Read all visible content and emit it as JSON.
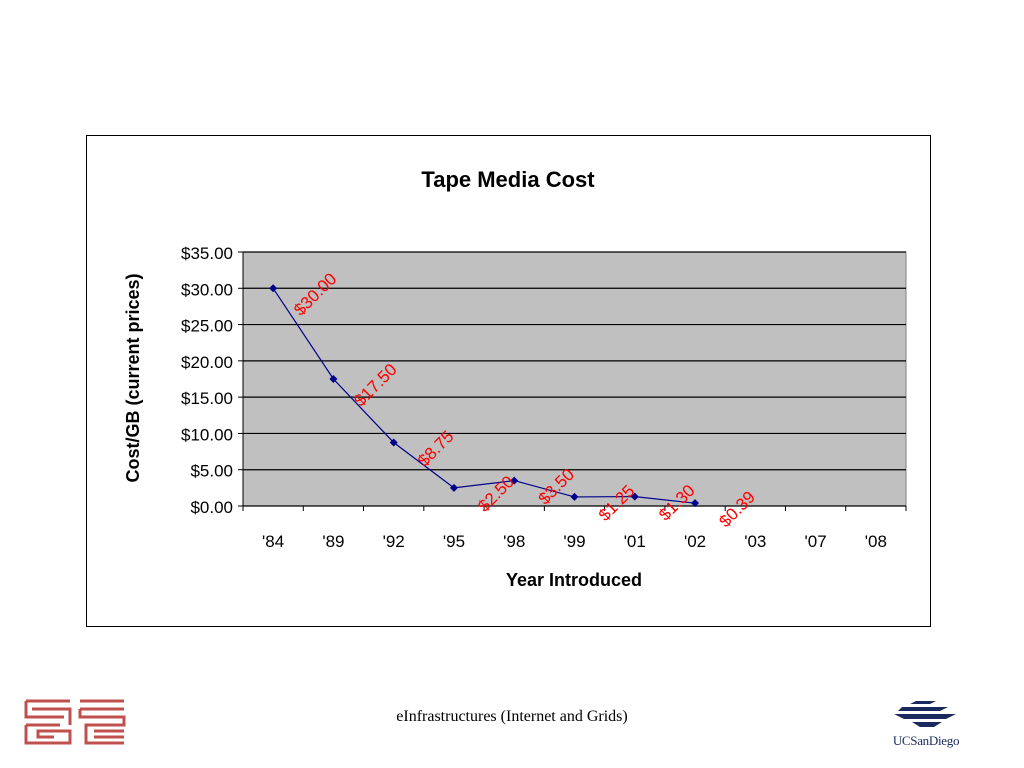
{
  "chart_data": {
    "type": "line",
    "title": "Tape Media Cost",
    "xlabel": "Year Introduced",
    "ylabel": "Cost/GB (current prices)",
    "categories": [
      "'84",
      "'89",
      "'92",
      "'95",
      "'98",
      "'99",
      "'01",
      "'02",
      "'03",
      "'07",
      "'08"
    ],
    "series": [
      {
        "values": [
          30.0,
          17.5,
          8.75,
          2.5,
          3.5,
          1.25,
          1.3,
          0.39,
          null,
          null,
          null
        ]
      }
    ],
    "data_labels": [
      "$30.00",
      "$17.50",
      "$8.75",
      "$2.50",
      "$3.50",
      "$1.25",
      "$1.30",
      "$0.39"
    ],
    "ylim": [
      0,
      35
    ],
    "ytick_values": [
      0,
      5,
      10,
      15,
      20,
      25,
      30,
      35
    ],
    "ytick_labels": [
      "$0.00",
      "$5.00",
      "$10.00",
      "$15.00",
      "$20.00",
      "$25.00",
      "$30.00",
      "$35.00"
    ],
    "grid": true,
    "line_color": "#00008b",
    "label_color": "#ff0000",
    "plot_background": "#c0c0c0"
  },
  "footer": {
    "text": "eInfrastructures (Internet and Grids)"
  },
  "logos": {
    "left_icon": "maze-logo-icon",
    "right_text": "UCSanDiego",
    "right_icon": "ucsd-ship-icon"
  }
}
